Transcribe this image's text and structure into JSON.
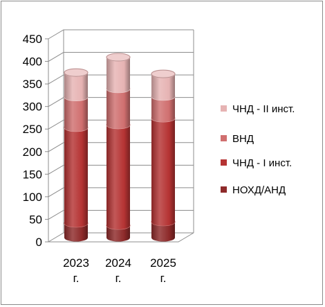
{
  "chart_data": {
    "type": "bar",
    "stacked": true,
    "style": "3d-cylinder",
    "categories": [
      "2023 г.",
      "2024 г.",
      "2025 г."
    ],
    "category_lines": [
      [
        "2023",
        "г."
      ],
      [
        "2024",
        "г."
      ],
      [
        "2025",
        "г."
      ]
    ],
    "series": [
      {
        "name": "НОХД/АНД",
        "values": [
          32,
          27,
          35
        ],
        "color": "#8e2a2a"
      },
      {
        "name": "ЧНД - I инст.",
        "values": [
          212,
          223,
          230
        ],
        "color": "#b53333"
      },
      {
        "name": "ВНД",
        "values": [
          68,
          80,
          48
        ],
        "color": "#d06f6f"
      },
      {
        "name": "ЧНД - II инст.",
        "values": [
          54,
          70,
          50
        ],
        "color": "#e6b3b3"
      }
    ],
    "ylim": [
      0,
      450
    ],
    "yticks": [
      0,
      50,
      100,
      150,
      200,
      250,
      300,
      350,
      400,
      450
    ],
    "grid": true,
    "legend_position": "right",
    "legend_order": [
      "ЧНД - II инст.",
      "ВНД",
      "ЧНД - I инст.",
      "НОХД/АНД"
    ]
  }
}
